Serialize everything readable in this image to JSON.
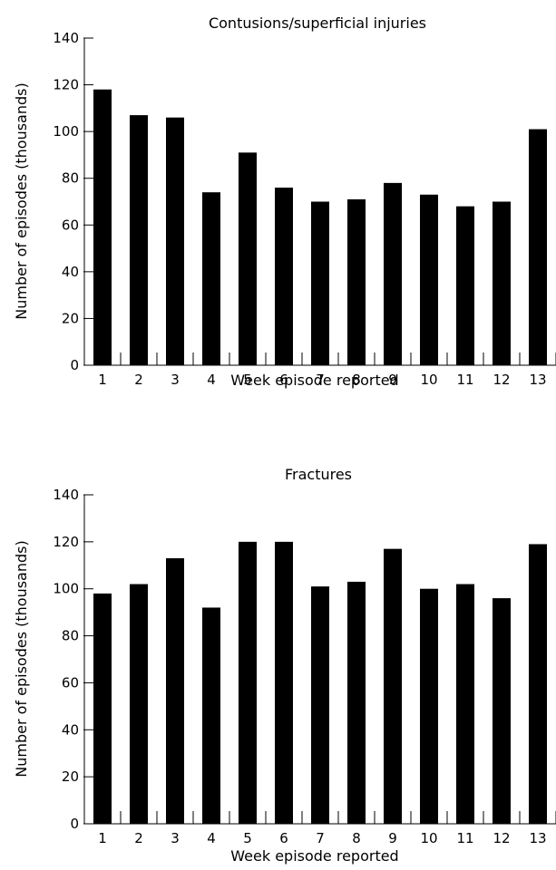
{
  "chart_data": [
    {
      "type": "bar",
      "title": "Contusions/superficial injuries",
      "xlabel": "Week episode reported",
      "ylabel": "Number of episodes (thousands)",
      "ylim": [
        0,
        140
      ],
      "yticks": [
        "0",
        "20",
        "40",
        "60",
        "80",
        "100",
        "120",
        "140"
      ],
      "categories": [
        "1",
        "2",
        "3",
        "4",
        "5",
        "6",
        "7",
        "8",
        "9",
        "10",
        "11",
        "12",
        "13"
      ],
      "values": [
        118,
        107,
        106,
        74,
        91,
        76,
        70,
        71,
        78,
        73,
        68,
        70,
        101
      ],
      "grid": false,
      "bar_color": "#000000"
    },
    {
      "type": "bar",
      "title": "Fractures",
      "xlabel": "Week episode reported",
      "ylabel": "Number of episodes (thousands)",
      "ylim": [
        0,
        140
      ],
      "yticks": [
        "0",
        "20",
        "40",
        "60",
        "80",
        "100",
        "120",
        "140"
      ],
      "categories": [
        "1",
        "2",
        "3",
        "4",
        "5",
        "6",
        "7",
        "8",
        "9",
        "10",
        "11",
        "12",
        "13"
      ],
      "values": [
        98,
        102,
        113,
        92,
        120,
        120,
        101,
        103,
        117,
        100,
        102,
        96,
        119
      ],
      "grid": false,
      "bar_color": "#000000"
    }
  ]
}
